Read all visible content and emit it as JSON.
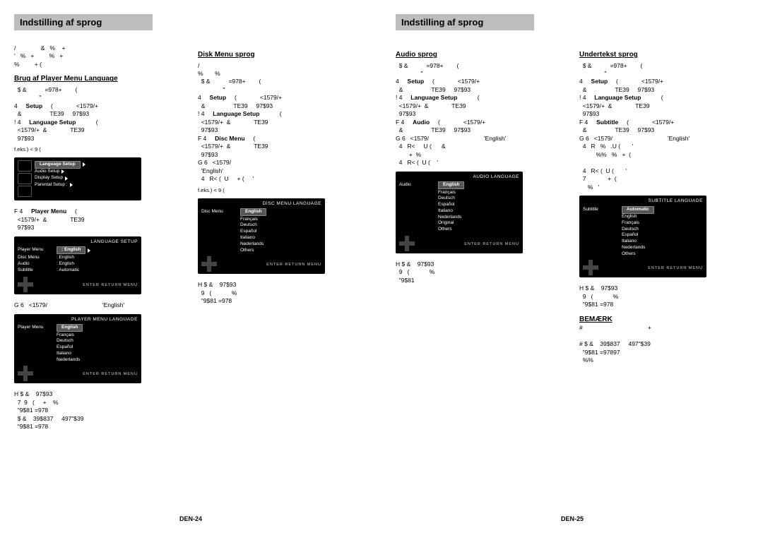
{
  "pages": {
    "left": {
      "header": "Indstilling af sprog",
      "footer": "DEN-24"
    },
    "right": {
      "header": "Indstilling af sprog",
      "footer": "DEN-25"
    }
  },
  "colA": {
    "intro": "/               &   %    +\n'   %   +         %   +\n%         + (",
    "title": "Brug af Player Menu Language",
    "s1": "  $ &           =978+        (\n               \"",
    "s2a": "4     ",
    "s2b": "Setup",
    "s2c": "     (              <1579/+\n  &                 TE39     97$93",
    "s3a": "! 4     ",
    "s3b": "Language Setup",
    "s3c": "            (\n  <1579/+  &              TE39\n  97$93",
    "feks": "f.eks.) <             9   (",
    "s4a": "F 4     ",
    "s4b": "Player Menu",
    "s4c": "     (\n  <1579/+  &              TE39\n  97$93",
    "s5": "G 6   <1579/                                 'English'",
    "s6": "H $ &    97$93\n  7  9   (     +    %\n  \"9$81 =978\n  $ &    39$837     497\"$39\n  \"9$81 =978"
  },
  "colB": {
    "title": "Disk Menu sprog",
    "intro": "/\n%       %",
    "s1": "  $ &           =978+        (\n               \"",
    "s2a": "4     ",
    "s2b": "Setup",
    "s2c": "     (              <1579/+\n  &                 TE39     97$93",
    "s3a": "! 4     ",
    "s3b": "Language Setup",
    "s3c": "            (\n  <1579/+  &              TE39\n  97$93",
    "s4a": "F 4     ",
    "s4b": "Disc Menu",
    "s4c": "     (\n  <1579/+  &              TE39\n  97$93",
    "s5": "G 6   <1579/\n  'English'\n  4   R< (  U     + (     '",
    "feks": "f.eks.) <             9   (",
    "s6": "H $ &    97$93\n  9   (            %\n  \"9$81 =978"
  },
  "colC": {
    "title": "Audio sprog",
    "s1": "  $ &           =978+        (\n               \"",
    "s2a": "4     ",
    "s2b": "Setup",
    "s2c": "     (              <1579/+\n  &                 TE39     97$93",
    "s3a": "! 4     ",
    "s3b": "Language Setup",
    "s3c": "            (\n  <1579/+  &              TE39\n  97$93",
    "s4a": "F 4     ",
    "s4b": "Audio",
    "s4c": "     (              <1579/+\n  &                 TE39     97$93",
    "s5": "G 6   <1579/                                 'English'\n  4   R<     U (      &\n        +  %\n  4   R< (  U (    '",
    "s6": "H $ &    97$93\n  9   (            %\n  \"9$81"
  },
  "colD": {
    "title": "Undertekst sprog",
    "s1": "  $ &           =978+        (\n               \"",
    "s2a": "4     ",
    "s2b": "Setup",
    "s2c": "     (              <1579/+\n  &                 TE39     97$93",
    "s3a": "! 4     ",
    "s3b": "Language Setup",
    "s3c": "            (\n  <1579/+  &              TE39\n  97$93",
    "s4a": "F 4     ",
    "s4b": "Subtitle",
    "s4c": "     (              <1579/+\n  &                 TE39     97$93",
    "s5": "G 6   <1579/                                 'English'\n  4   R   %   .U (       '\n          %%   %   +  (\n\n  4   R< (  U (       '\n  7             +  (\n     %   '",
    "s6": "H $ &    97$93\n  9   (            %\n  \"9$81 =978",
    "note_label": "BEMÆRK",
    "note": "#                                       +\n\n# $ &    39$837     497\"$39\n  \"9$81 =97897\n  %%"
  },
  "osd": {
    "langsetup": {
      "title": "LANGUAGE SETUP",
      "rows": [
        {
          "l": "Player Menu",
          "v": ": English",
          "sel": true,
          "arrow": true
        },
        {
          "l": "Disc Menu",
          "v": ": English"
        },
        {
          "l": "Audio",
          "v": ": English"
        },
        {
          "l": "Subtitle",
          "v": ": Automatic"
        }
      ],
      "buttons": "ENTER   RETURN   MENU"
    },
    "setup_root": {
      "rows": [
        {
          "l": "Language Setup",
          "sel": true,
          "arrow": true
        },
        {
          "l": "Audio Setup",
          "arrow": true
        },
        {
          "l": "Display Setup",
          "arrow": true
        },
        {
          "l": "Parental Setup :",
          "arrow": true
        }
      ]
    },
    "playermenu": {
      "title": "PLAYER MENU LANGUAGE",
      "left": "Player Menu",
      "sel": "English",
      "langs": [
        "Français",
        "Deutsch",
        "Español",
        "Italiano",
        "Nederlands"
      ],
      "buttons": "ENTER   RETURN   MENU"
    },
    "discmenu": {
      "title": "DISC MENU LANGUAGE",
      "left": "Disc Menu",
      "sel": "English",
      "langs": [
        "Français",
        "Deutsch",
        "Español",
        "Italiano",
        "Nederlands",
        "Others"
      ],
      "buttons": "ENTER   RETURN   MENU"
    },
    "audiolang": {
      "title": "AUDIO LANGUAGE",
      "left": "Audio",
      "sel": "English",
      "langs": [
        "Français",
        "Deutsch",
        "Español",
        "Italiano",
        "Nederlands",
        "Original",
        "Others"
      ],
      "buttons": "ENTER   RETURN   MENU"
    },
    "sublang": {
      "title": "SUBTITLE LANGUAGE",
      "left": "Subtitle",
      "sel": "Automatic",
      "langs": [
        "English",
        "Français",
        "Deutsch",
        "Español",
        "Italiano",
        "Nederlands",
        "Others"
      ],
      "buttons": "ENTER   RETURN   MENU"
    }
  }
}
